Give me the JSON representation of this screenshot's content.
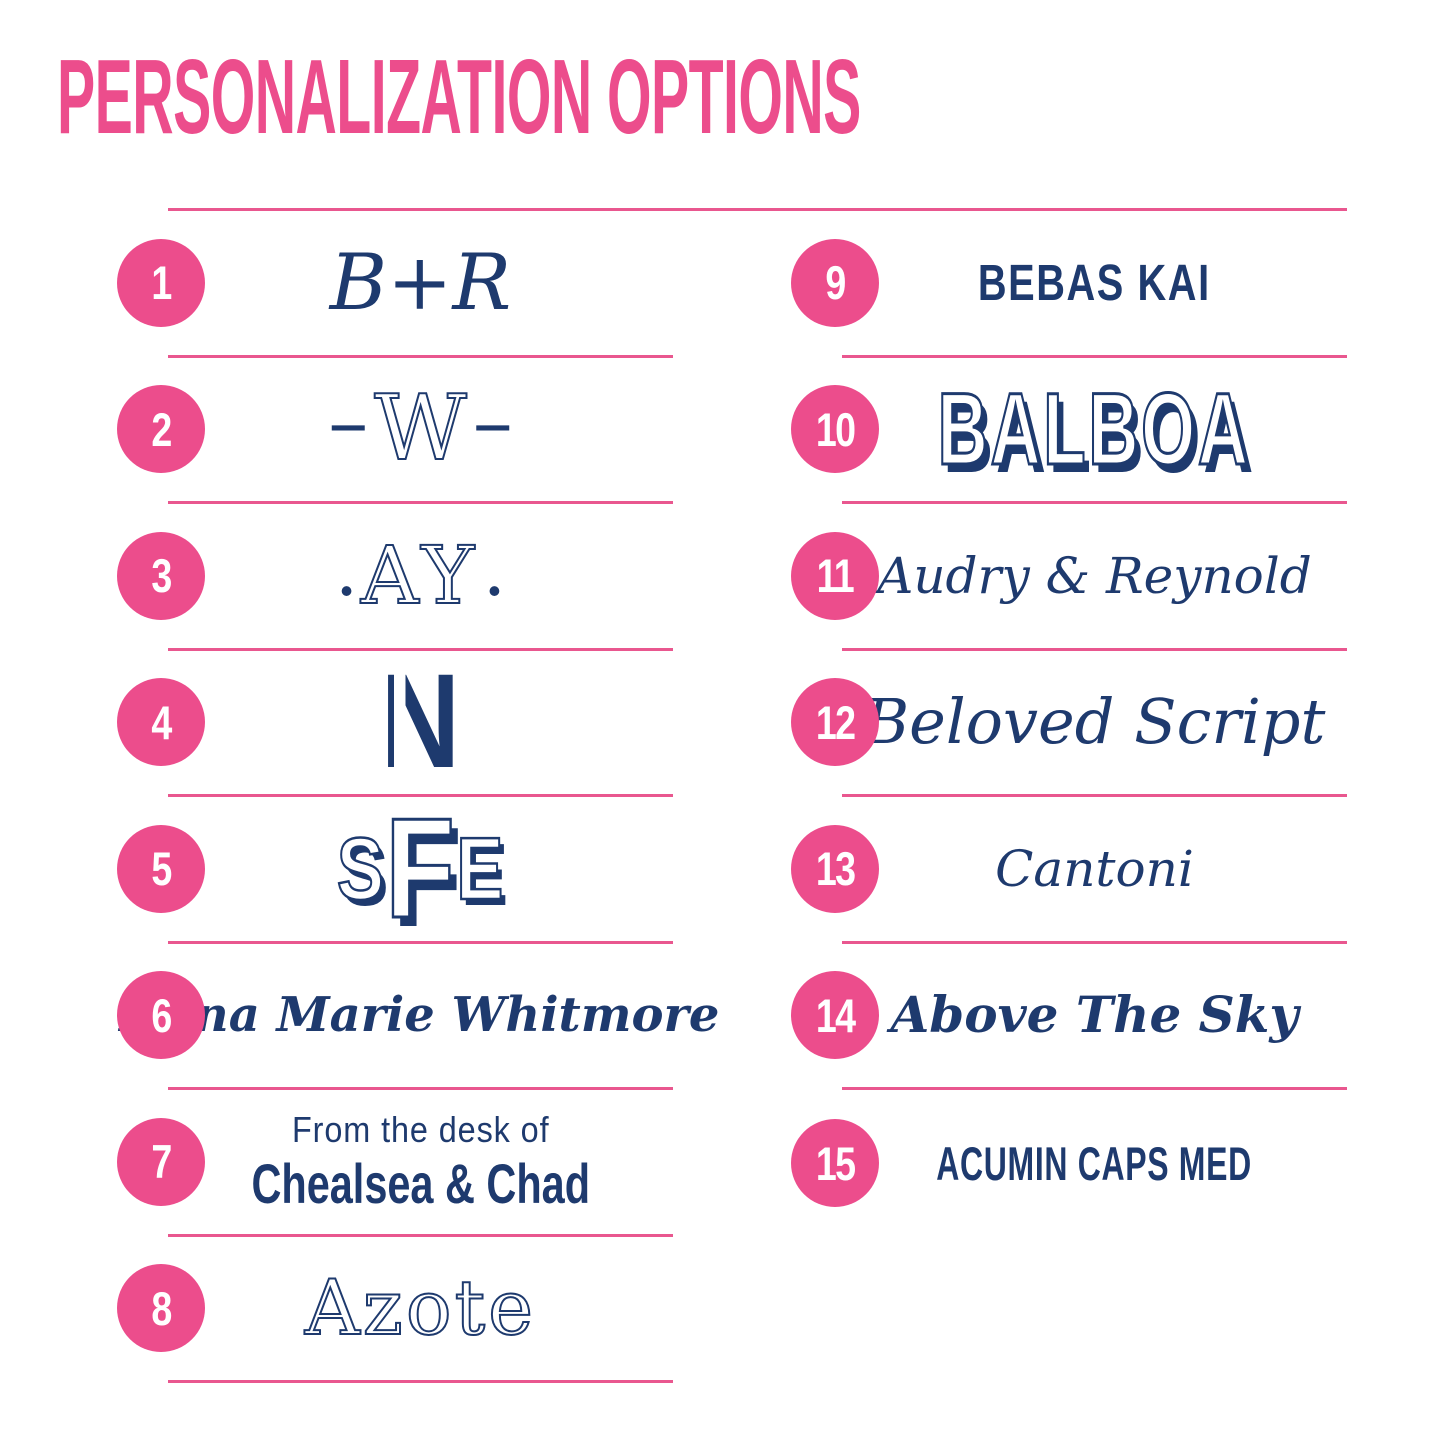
{
  "title": "PERSONALIZATION OPTIONS",
  "colors": {
    "pink": "#EC4D8C",
    "divider_pink": "#E9578F",
    "navy": "#1E3A6E",
    "background": "#FFFFFF"
  },
  "columns": {
    "left": {
      "items": [
        {
          "number": "1",
          "label": "B+R"
        },
        {
          "number": "2",
          "prefix": "–",
          "core": "W",
          "suffix": "–"
        },
        {
          "number": "3",
          "prefix": "•",
          "core": "AY",
          "suffix": "•"
        },
        {
          "number": "4",
          "label": "N"
        },
        {
          "number": "5",
          "letters": [
            "S",
            "F",
            "E"
          ]
        },
        {
          "number": "6",
          "label": "Anna Marie Whitmore"
        },
        {
          "number": "7",
          "line1": "From the desk of",
          "line2": "Chealsea & Chad"
        },
        {
          "number": "8",
          "label": "Azote"
        }
      ]
    },
    "right": {
      "items": [
        {
          "number": "9",
          "label": "BEBAS KAI"
        },
        {
          "number": "10",
          "label": "BALBOA"
        },
        {
          "number": "11",
          "label": "Audry & Reynold"
        },
        {
          "number": "12",
          "label": "Beloved Script"
        },
        {
          "number": "13",
          "label": "Cantoni"
        },
        {
          "number": "14",
          "label": "Above The Sky"
        },
        {
          "number": "15",
          "label": "ACUMIN CAPS MED"
        }
      ]
    }
  }
}
